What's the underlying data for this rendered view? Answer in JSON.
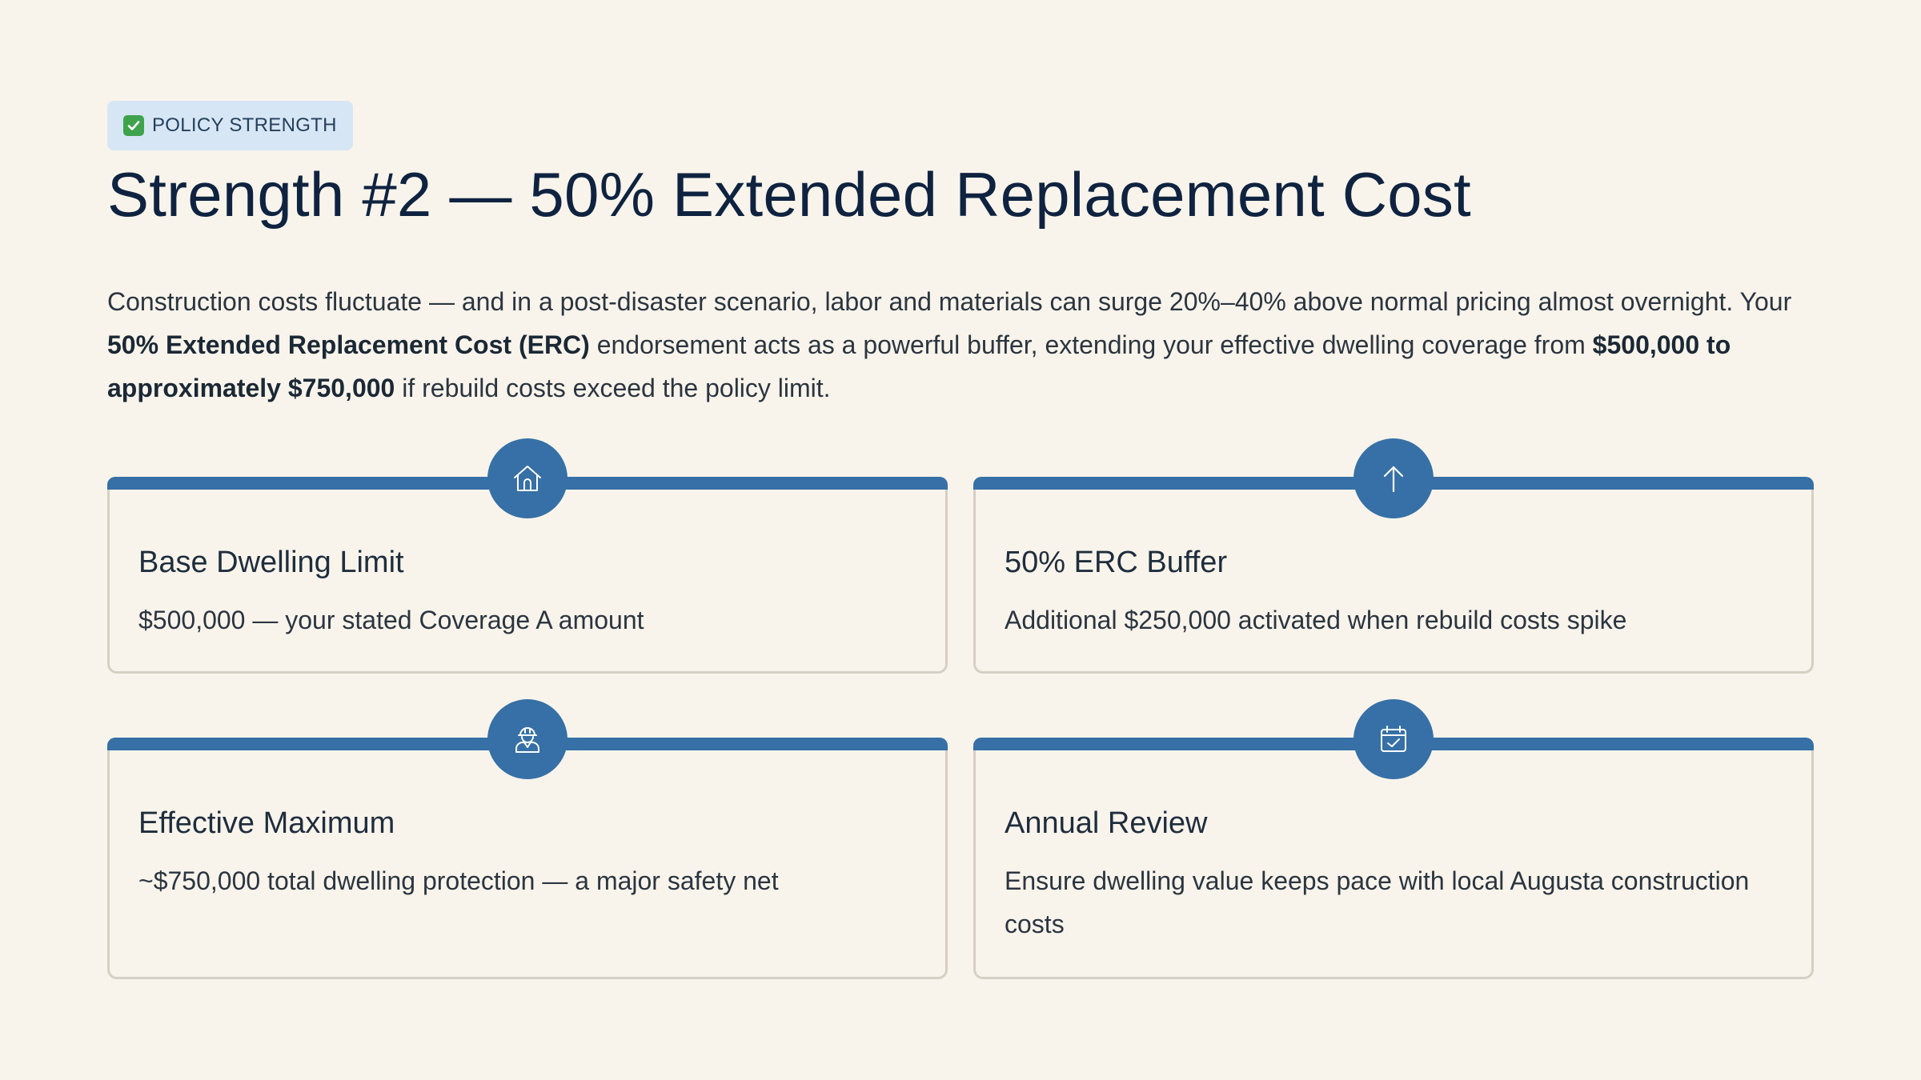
{
  "badge": {
    "icon": "check-mark-icon",
    "label": "POLICY STRENGTH"
  },
  "title": "Strength #2 — 50% Extended Replacement Cost",
  "intro": {
    "part1": "Construction costs fluctuate — and in a post-disaster scenario, labor and materials can surge 20%–40% above normal pricing almost overnight. Your ",
    "bold1": "50% Extended Replacement Cost (ERC)",
    "part2": " endorsement acts as a powerful buffer, extending your effective dwelling coverage from ",
    "bold2": "$500,000 to approximately $750,000",
    "part3": " if rebuild costs exceed the policy limit."
  },
  "cards": [
    {
      "icon": "house-icon",
      "title": "Base Dwelling Limit",
      "description": "$500,000 — your stated Coverage A amount"
    },
    {
      "icon": "arrow-up-icon",
      "title": "50% ERC Buffer",
      "description": "Additional $250,000 activated when rebuild costs spike"
    },
    {
      "icon": "construction-worker-icon",
      "title": "Effective Maximum",
      "description": "~$750,000 total dwelling protection — a major safety net"
    },
    {
      "icon": "calendar-check-icon",
      "title": "Annual Review",
      "description": "Ensure dwelling value keeps pace with local Augusta construction costs"
    }
  ],
  "colors": {
    "background": "#f8f4eb",
    "accent": "#3670a6",
    "badge_bg": "#d7e6f4",
    "title": "#0f2340"
  }
}
